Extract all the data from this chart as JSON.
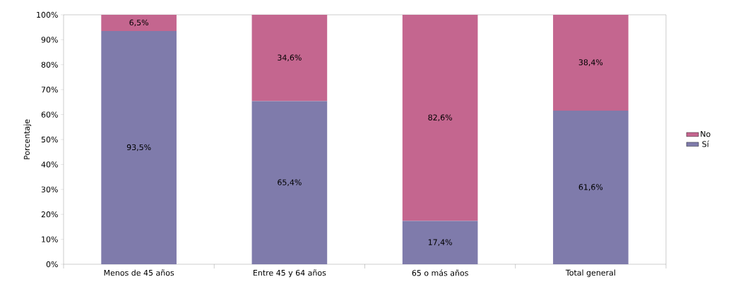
{
  "chart_data": {
    "type": "bar",
    "stacked": true,
    "ylabel": "Porcentaje",
    "categories": [
      "Menos de 45 años",
      "Entre 45 y 64 años",
      "65 o más años",
      "Total general"
    ],
    "series": [
      {
        "name": "Sí",
        "color": "#7f7bab",
        "values": [
          93.5,
          65.4,
          17.4,
          61.6
        ],
        "value_labels": [
          "93,5%",
          "65,4%",
          "17,4%",
          "61,6%"
        ]
      },
      {
        "name": "No",
        "color": "#c4668f",
        "values": [
          6.5,
          34.6,
          82.6,
          38.4
        ],
        "value_labels": [
          "6,5%",
          "34,6%",
          "82,6%",
          "38,4%"
        ]
      }
    ],
    "ylim": [
      0,
      100
    ],
    "yticks": [
      {
        "value": 0,
        "label": "0%"
      },
      {
        "value": 10,
        "label": "10%"
      },
      {
        "value": 20,
        "label": "20%"
      },
      {
        "value": 30,
        "label": "30%"
      },
      {
        "value": 40,
        "label": "40%"
      },
      {
        "value": 50,
        "label": "50%"
      },
      {
        "value": 60,
        "label": "60%"
      },
      {
        "value": 70,
        "label": "70%"
      },
      {
        "value": 80,
        "label": "80%"
      },
      {
        "value": 90,
        "label": "90%"
      },
      {
        "value": 100,
        "label": "100%"
      }
    ],
    "grid": false,
    "legend": "right"
  }
}
